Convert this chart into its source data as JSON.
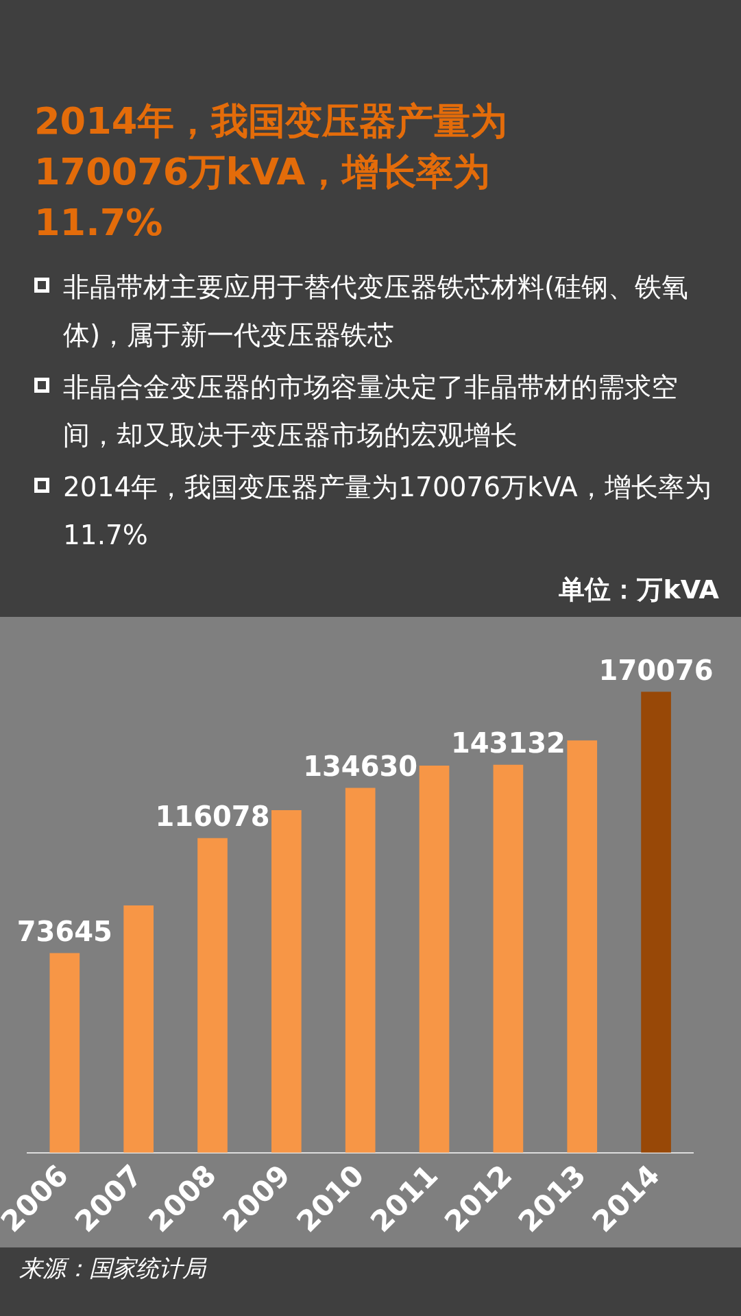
{
  "chart_data": {
    "type": "bar",
    "title": "2014年，我国变压器产量为170076万kVA，增长率为11.7%",
    "annotations": [
      "非晶带材主要应用于替代变压器铁芯材料(硅钢、铁氧体)，属于新一代变压器铁芯",
      "非晶合金变压器的市场容量决定了非晶带材的需求空间，却又取决于变压器市场的宏观增长",
      "2014年，我国变压器产量为170076万kVA，增长率为11.7%",
      "来源：国家统计局"
    ],
    "ylabel": "单位：万kVA",
    "categories": [
      "2006",
      "2007",
      "2008",
      "2009",
      "2010",
      "2011",
      "2012",
      "2013",
      "2014"
    ],
    "values": [
      73645,
      91200,
      116078,
      126400,
      134630,
      142800,
      143132,
      152100,
      170076
    ],
    "value_labels": [
      "73645",
      null,
      "116078",
      null,
      "134630",
      null,
      "143132",
      null,
      "170076"
    ],
    "colors": [
      "#f79646",
      "#f79646",
      "#f79646",
      "#f79646",
      "#f79646",
      "#f79646",
      "#f79646",
      "#f79646",
      "#984807"
    ]
  }
}
